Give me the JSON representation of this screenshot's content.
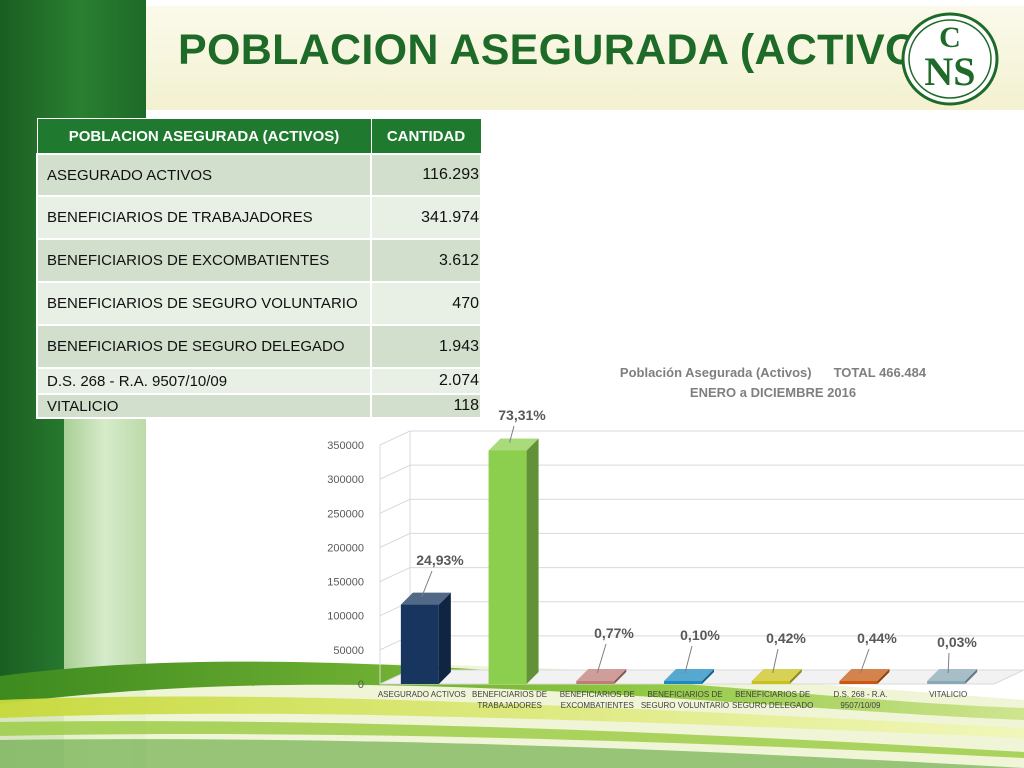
{
  "slide": {
    "title": "POBLACION ASEGURADA (ACTIVOS)",
    "logo_text": "CNS",
    "logo_letters": [
      "C",
      "NS"
    ]
  },
  "colors": {
    "title_green": "#1e6a28",
    "table_header_bg": "#1f7a30",
    "row_odd_bg": "#d3dfcd",
    "row_even_bg": "#e8efe5",
    "sidebar_dark_green": "#1f6b28",
    "sidebar_light_green": "#c5dfb6",
    "header_band_cream": "#f8f6dc"
  },
  "table": {
    "headers": [
      "POBLACION ASEGURADA (ACTIVOS)",
      "CANTIDAD"
    ],
    "rows": [
      {
        "label": "ASEGURADO ACTIVOS",
        "value": "116.293"
      },
      {
        "label": "BENEFICIARIOS DE TRABAJADORES",
        "value": "341.974"
      },
      {
        "label": "BENEFICIARIOS DE EXCOMBATIENTES",
        "value": "3.612"
      },
      {
        "label": "BENEFICIARIOS DE SEGURO VOLUNTARIO",
        "value": "470"
      },
      {
        "label": "BENEFICIARIOS DE SEGURO DELEGADO",
        "value": "1.943"
      },
      {
        "label": "D.S. 268 - R.A. 9507/10/09",
        "value": "2.074"
      },
      {
        "label": "VITALICIO",
        "value": "118"
      }
    ]
  },
  "chart_data": {
    "type": "bar",
    "title": "Población Asegurada (Activos)",
    "title_total": "TOTAL  466.484",
    "subtitle": "ENERO a   DICIEMBRE  2016",
    "categories": [
      "ASEGURADO ACTIVOS",
      "BENEFICIARIOS DE TRABAJADORES",
      "BENEFICIARIOS DE EXCOMBATIENTES",
      "BENEFICIARIOS DE SEGURO VOLUNTARIO",
      "BENEFICIARIOS DE SEGURO DELEGADO",
      "D.S. 268 - R.A. 9507/10/09",
      "VITALICIO"
    ],
    "category_label_lines": [
      [
        "ASEGURADO ACTIVOS"
      ],
      [
        "BENEFICIARIOS DE",
        "TRABAJADORES"
      ],
      [
        "BENEFICIARIOS DE",
        "EXCOMBATIENTES"
      ],
      [
        "BENEFICIARIOS DE",
        "SEGURO VOLUNTARIO"
      ],
      [
        "BENEFICIARIOS DE",
        "SEGURO DELEGADO"
      ],
      [
        "D.S. 268 - R.A.",
        "9507/10/09"
      ],
      [
        "VITALICIO"
      ]
    ],
    "values": [
      116293,
      341974,
      3612,
      470,
      1943,
      2074,
      118
    ],
    "data_labels": [
      "24,93%",
      "73,31%",
      "0,77%",
      "0,10%",
      "0,42%",
      "0,44%",
      "0,03%"
    ],
    "bar_colors": [
      "#17355e",
      "#8ccf4f",
      "#c07d78",
      "#1e8bc0",
      "#c9c21c",
      "#c75a10",
      "#8aa8b6"
    ],
    "ylim": [
      0,
      350000
    ],
    "yticks": [
      0,
      50000,
      100000,
      150000,
      200000,
      250000,
      300000,
      350000
    ],
    "grid": true,
    "legend": "none",
    "style": "3d-column"
  }
}
